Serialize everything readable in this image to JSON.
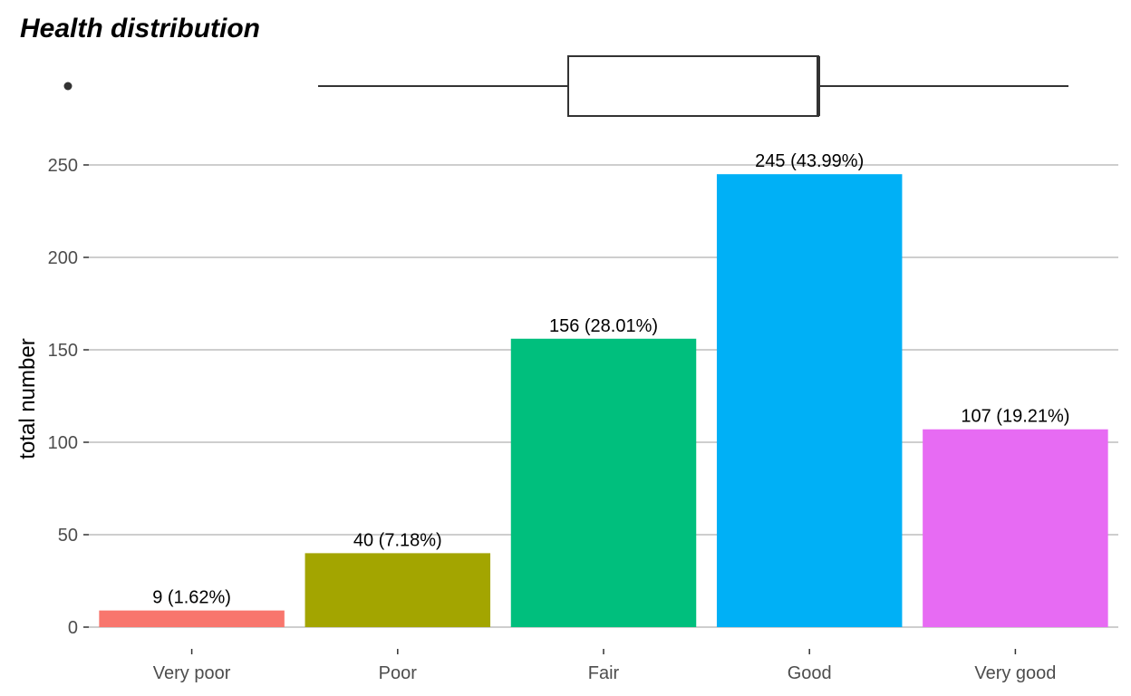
{
  "chart_data": {
    "type": "bar",
    "title": "Health distribution",
    "xlabel": "",
    "ylabel": "total number",
    "ylim": [
      0,
      265
    ],
    "yticks": [
      0,
      50,
      100,
      150,
      200,
      250
    ],
    "grid": true,
    "legend": "none",
    "categories": [
      "Very poor",
      "Poor",
      "Fair",
      "Good",
      "Very good"
    ],
    "values": [
      9,
      40,
      156,
      245,
      107
    ],
    "labels": [
      "9 (1.62%)",
      "40 (7.18%)",
      "156 (28.01%)",
      "245 (43.99%)",
      "107 (19.21%)"
    ],
    "colors": [
      "#F8766D",
      "#A3A500",
      "#00BF7D",
      "#00B0F6",
      "#E76BF3"
    ],
    "boxplot": {
      "orientation": "horizontal",
      "min": 2,
      "q1": 3,
      "median": 4,
      "q3": 4,
      "max": 5,
      "outliers": [
        1
      ]
    }
  }
}
